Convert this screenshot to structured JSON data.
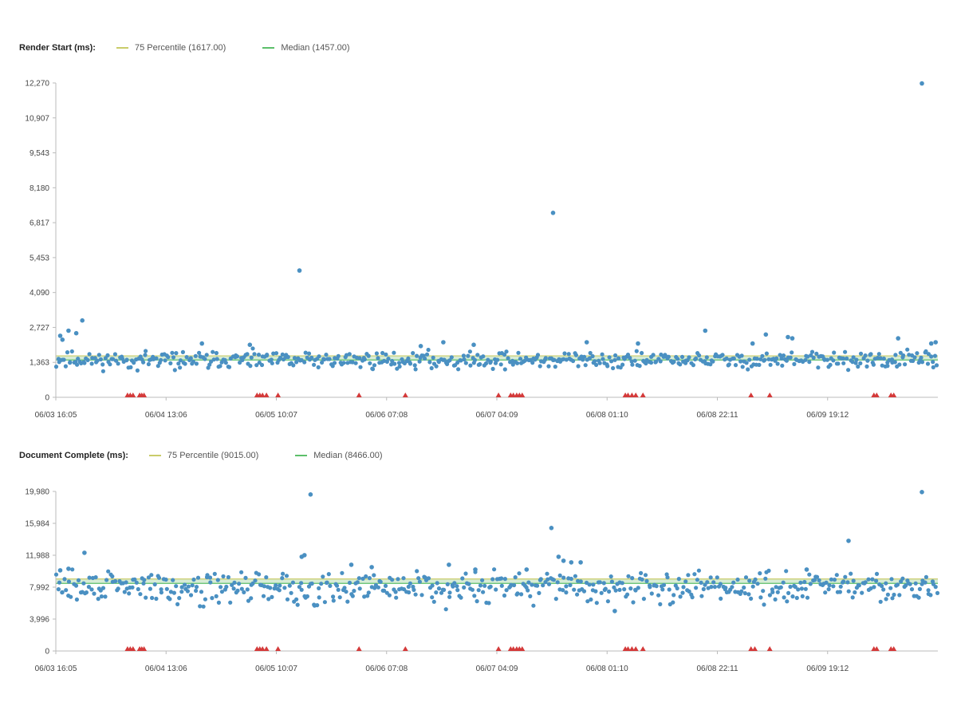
{
  "colors": {
    "point": "#4a90c2",
    "percentile": "#c9cc6a",
    "median": "#5cbf6a",
    "band": "#d7ecd6",
    "failure": "#d43a3a",
    "axis": "#bbbbbb"
  },
  "chart_data": [
    {
      "type": "scatter",
      "title": "Render Start (ms):",
      "legend": [
        {
          "name": "75 Percentile (1617.00)",
          "color_key": "percentile"
        },
        {
          "name": "Median (1457.00)",
          "color_key": "median"
        }
      ],
      "percentile75": 1617,
      "median": 1457,
      "ylim": [
        0,
        12270
      ],
      "y_ticks": [
        0,
        1363,
        2727,
        4090,
        5453,
        6817,
        8180,
        9543,
        10907,
        12270
      ],
      "y_tick_labels": [
        "0",
        "1,363",
        "2,727",
        "4,090",
        "5,453",
        "6,817",
        "8,180",
        "9,543",
        "10,907",
        "12,270"
      ],
      "x_range": [
        0,
        160
      ],
      "x_ticks": [
        0,
        20,
        40,
        60,
        80,
        100,
        120,
        140
      ],
      "x_tick_labels": [
        "06/03 16:05",
        "06/04 13:06",
        "06/05 10:07",
        "06/06 07:08",
        "06/07 04:09",
        "06/08 01:10",
        "06/08 22:11",
        "06/09 19:12"
      ],
      "baseline": 1450,
      "noise": 160,
      "count": 560,
      "seed": 11,
      "outliers": [
        {
          "x": 0.8,
          "y": 2400
        },
        {
          "x": 1.2,
          "y": 2250
        },
        {
          "x": 2.3,
          "y": 2600
        },
        {
          "x": 3.7,
          "y": 2500
        },
        {
          "x": 4.8,
          "y": 3000
        },
        {
          "x": 26.5,
          "y": 2100
        },
        {
          "x": 35.2,
          "y": 2050
        },
        {
          "x": 44.2,
          "y": 4950
        },
        {
          "x": 66.2,
          "y": 2000
        },
        {
          "x": 70.3,
          "y": 2150
        },
        {
          "x": 75.8,
          "y": 2050
        },
        {
          "x": 90.2,
          "y": 7200
        },
        {
          "x": 96.3,
          "y": 2150
        },
        {
          "x": 105.6,
          "y": 2100
        },
        {
          "x": 117.8,
          "y": 2600
        },
        {
          "x": 126.4,
          "y": 2100
        },
        {
          "x": 128.8,
          "y": 2450
        },
        {
          "x": 132.8,
          "y": 2350
        },
        {
          "x": 133.6,
          "y": 2300
        },
        {
          "x": 152.8,
          "y": 2300
        },
        {
          "x": 157.1,
          "y": 12250
        },
        {
          "x": 158.8,
          "y": 2100
        },
        {
          "x": 159.6,
          "y": 2150
        }
      ],
      "failures_x": [
        13,
        13.5,
        14,
        15.2,
        15.6,
        16,
        36.5,
        37,
        37.5,
        38.2,
        40.3,
        55,
        63.4,
        80.3,
        82.5,
        83,
        83.6,
        84.1,
        84.6,
        103.3,
        103.8,
        104.5,
        105.2,
        106.5,
        126.1,
        129.5,
        148.4,
        148.9,
        151.5,
        152
      ]
    },
    {
      "type": "scatter",
      "title": "Document Complete (ms):",
      "legend": [
        {
          "name": "75 Percentile (9015.00)",
          "color_key": "percentile"
        },
        {
          "name": "Median (8466.00)",
          "color_key": "median"
        }
      ],
      "percentile75": 9015,
      "median": 8466,
      "ylim": [
        0,
        19980
      ],
      "y_ticks": [
        0,
        3996,
        7992,
        11988,
        15984,
        19980
      ],
      "y_tick_labels": [
        "0",
        "3,996",
        "7,992",
        "11,988",
        "15,984",
        "19,980"
      ],
      "x_range": [
        0,
        160
      ],
      "x_ticks": [
        0,
        20,
        40,
        60,
        80,
        100,
        120,
        140
      ],
      "x_tick_labels": [
        "06/03 16:05",
        "06/04 13:06",
        "06/05 10:07",
        "06/06 07:08",
        "06/07 04:09",
        "06/08 01:10",
        "06/08 22:11",
        "06/09 19:12"
      ],
      "baseline": 8000,
      "noise": 950,
      "count": 560,
      "seed": 29,
      "outliers": [
        {
          "x": 0.8,
          "y": 10100
        },
        {
          "x": 2.3,
          "y": 10300
        },
        {
          "x": 5.2,
          "y": 12300
        },
        {
          "x": 44.6,
          "y": 11800
        },
        {
          "x": 45.1,
          "y": 12000
        },
        {
          "x": 46.2,
          "y": 19600
        },
        {
          "x": 53.6,
          "y": 10800
        },
        {
          "x": 57.3,
          "y": 10500
        },
        {
          "x": 71.3,
          "y": 10800
        },
        {
          "x": 76.1,
          "y": 10200
        },
        {
          "x": 85.4,
          "y": 10200
        },
        {
          "x": 89.9,
          "y": 15400
        },
        {
          "x": 91.2,
          "y": 11800
        },
        {
          "x": 92.1,
          "y": 11300
        },
        {
          "x": 93.5,
          "y": 11100
        },
        {
          "x": 95.2,
          "y": 11100
        },
        {
          "x": 101.4,
          "y": 5000
        },
        {
          "x": 136.2,
          "y": 10200
        },
        {
          "x": 143.8,
          "y": 13800
        },
        {
          "x": 157.1,
          "y": 19900
        }
      ],
      "failures_x": [
        13,
        13.5,
        14,
        15.2,
        15.6,
        16,
        36.5,
        37,
        37.5,
        38.2,
        40.3,
        55,
        63.4,
        80.3,
        82.5,
        83,
        83.6,
        84.1,
        84.6,
        103.3,
        103.8,
        104.5,
        105.2,
        106.5,
        126.1,
        126.8,
        129.5,
        148.4,
        148.9,
        151.5,
        152
      ]
    }
  ]
}
